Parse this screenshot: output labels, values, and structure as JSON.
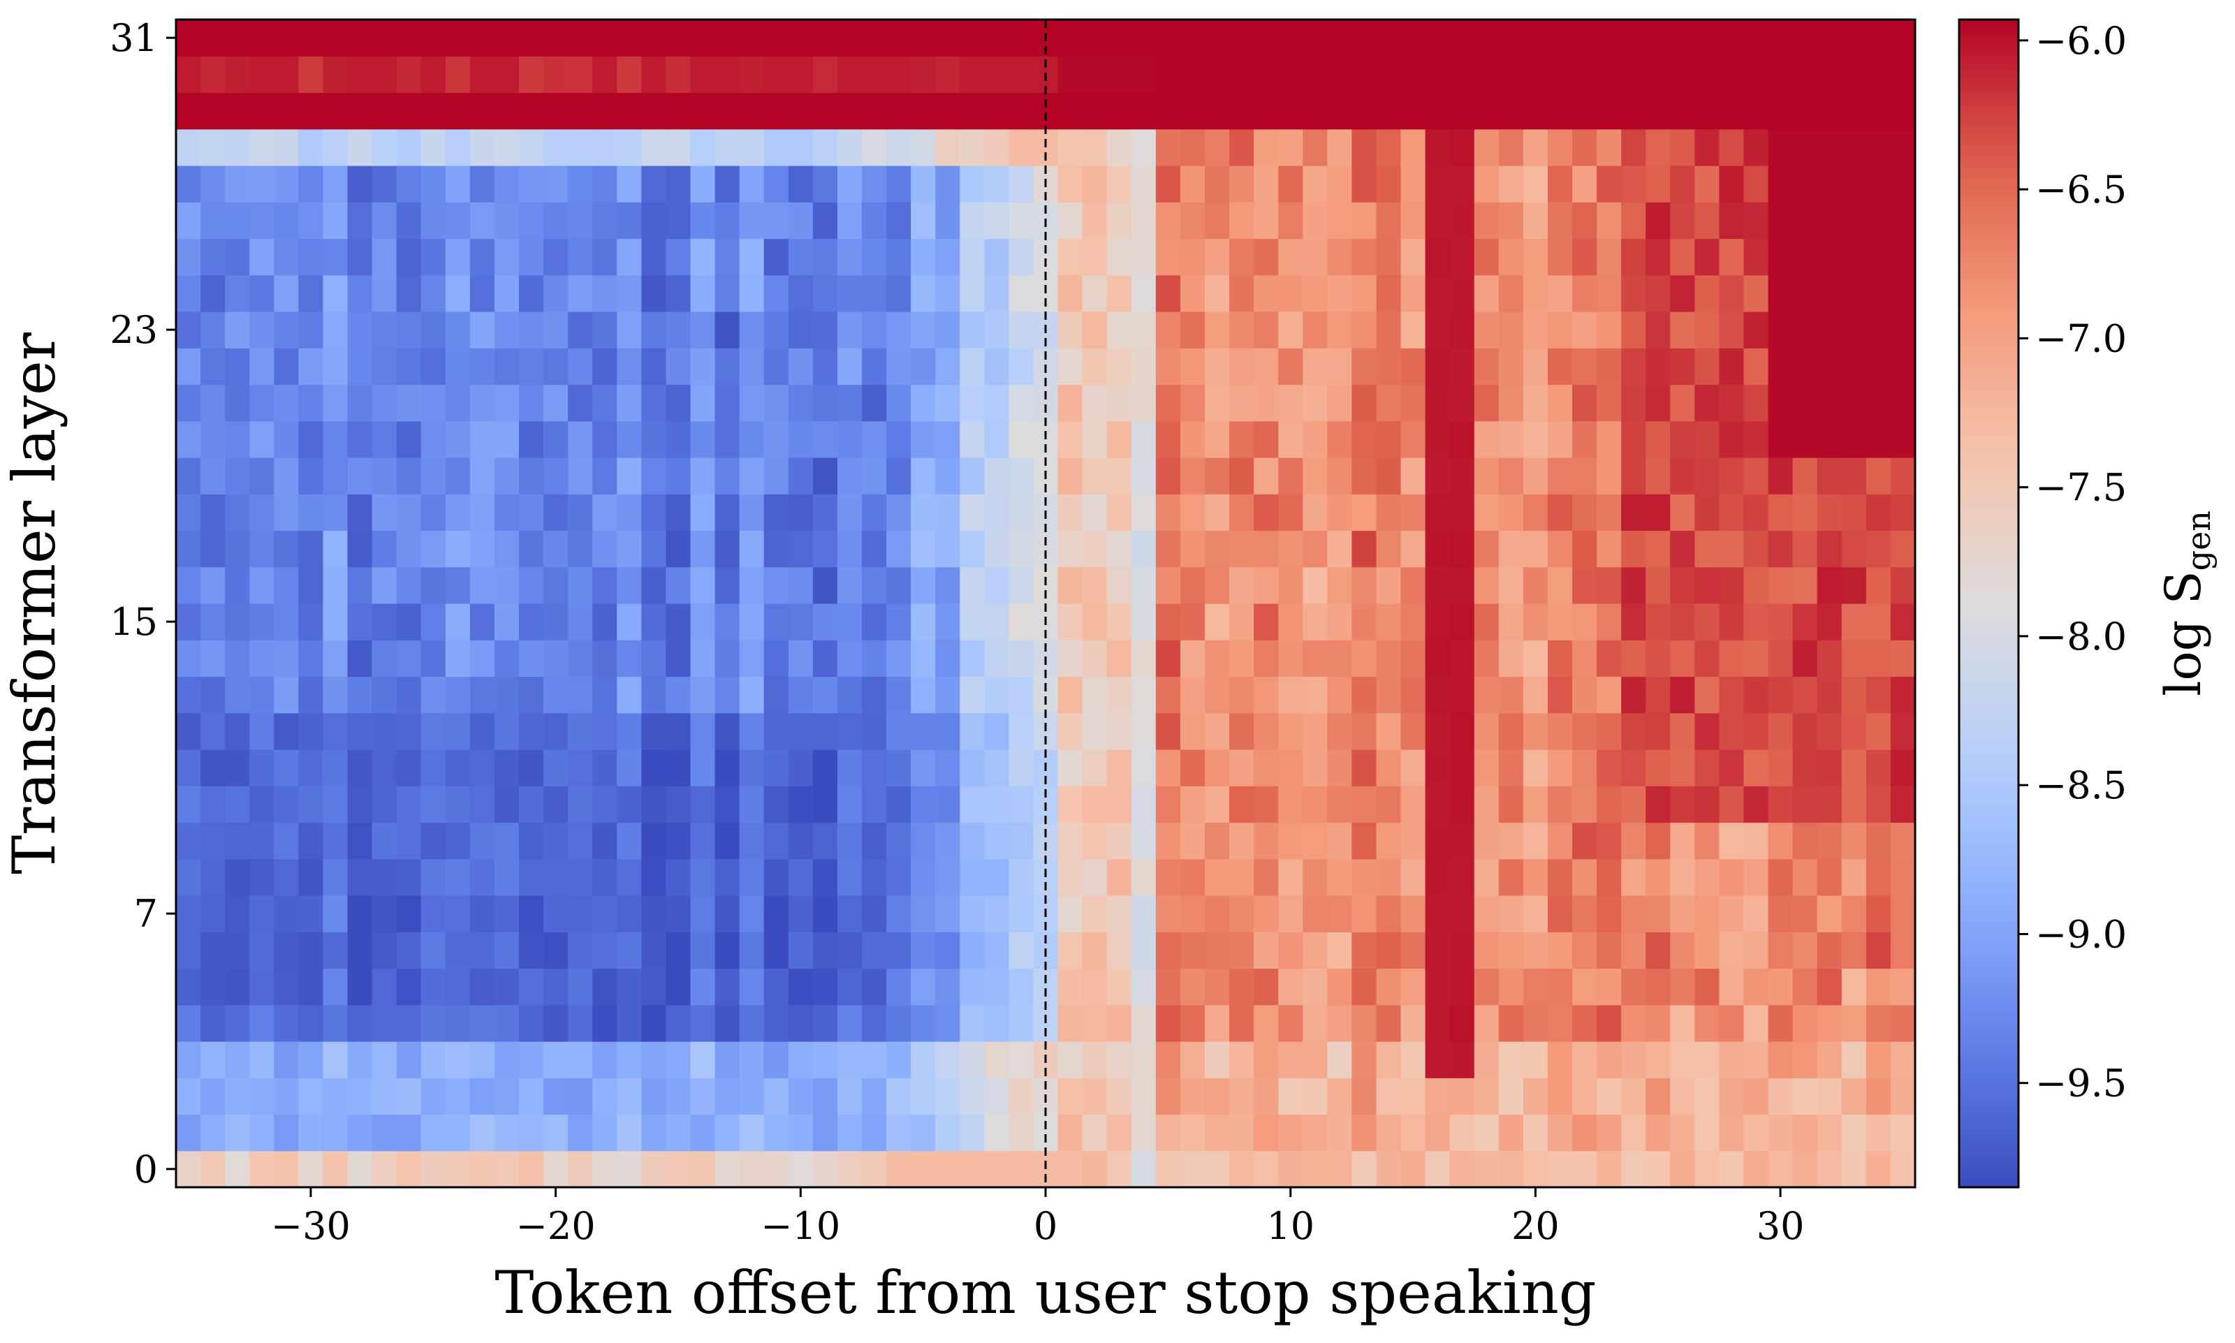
{
  "chart_data": {
    "type": "heatmap",
    "xlabel": "Token offset from user stop speaking",
    "ylabel": "Transformer layer",
    "colorbar_label": "log S",
    "colorbar_label_sub": "gen",
    "x_range": [
      -35,
      35
    ],
    "y_range": [
      0,
      31
    ],
    "x_ticks": [
      -30,
      -20,
      -10,
      0,
      10,
      20,
      30
    ],
    "x_tick_labels": [
      "−30",
      "−20",
      "−10",
      "0",
      "10",
      "20",
      "30"
    ],
    "y_ticks": [
      0,
      7,
      15,
      23,
      31
    ],
    "y_tick_labels": [
      "0",
      "7",
      "15",
      "23",
      "31"
    ],
    "color_range": [
      -9.85,
      -5.93
    ],
    "colorbar_ticks": [
      -6.0,
      -6.5,
      -7.0,
      -7.5,
      -8.0,
      -8.5,
      -9.0,
      -9.5
    ],
    "colorbar_tick_labels": [
      "−6.0",
      "−6.5",
      "−7.0",
      "−7.5",
      "−8.0",
      "−8.5",
      "−9.0",
      "−9.5"
    ],
    "colormap": "coolwarm",
    "vertical_line_at_x": 0,
    "grid": false
  }
}
